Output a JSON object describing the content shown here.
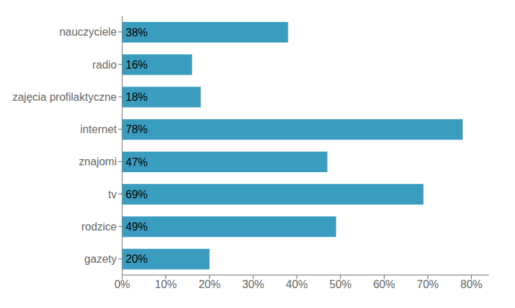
{
  "chart_data": {
    "type": "bar",
    "orientation": "horizontal",
    "categories": [
      "gazety",
      "rodzice",
      "tv",
      "znajomi",
      "internet",
      "zajęcia profilaktyczne",
      "radio",
      "nauczyciele"
    ],
    "values": [
      20,
      49,
      69,
      47,
      78,
      18,
      16,
      38
    ],
    "value_labels": [
      "20%",
      "49%",
      "69%",
      "47%",
      "78%",
      "18%",
      "16%",
      "38%"
    ],
    "data_labels": true,
    "color": "#3a9dbf",
    "xlim": [
      0,
      84
    ],
    "xticks": [
      {
        "value": 0,
        "label": "0%"
      },
      {
        "value": 10,
        "label": "10%"
      },
      {
        "value": 20,
        "label": "20%"
      },
      {
        "value": 30,
        "label": "30%"
      },
      {
        "value": 40,
        "label": "40%"
      },
      {
        "value": 50,
        "label": "50%"
      },
      {
        "value": 60,
        "label": "60%"
      },
      {
        "value": 70,
        "label": "70%"
      },
      {
        "value": 80,
        "label": "80%"
      }
    ],
    "grid": false
  }
}
